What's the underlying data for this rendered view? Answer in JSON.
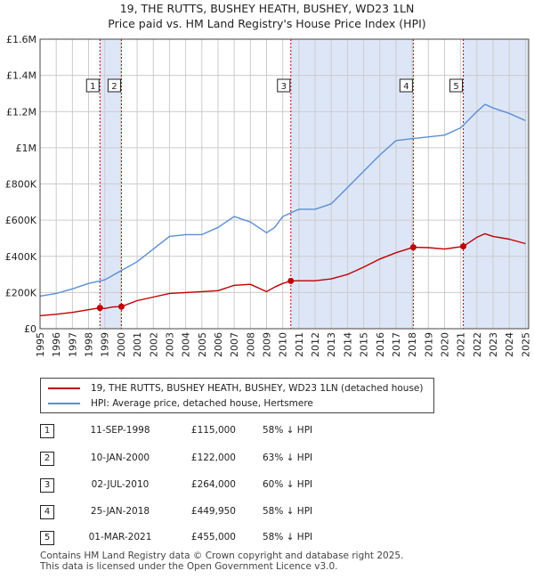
{
  "titles": {
    "line1": "19, THE RUTTS, BUSHEY HEATH, BUSHEY, WD23 1LN",
    "line2": "Price paid vs. HM Land Registry's House Price Index (HPI)"
  },
  "colors": {
    "property": "#c00000",
    "hpi": "#5b8ed6",
    "shade": "#dde6f7",
    "grid": "#cccccc"
  },
  "chart_data": {
    "type": "line",
    "title": "19, THE RUTTS, BUSHEY HEATH, BUSHEY, WD23 1LN",
    "subtitle": "Price paid vs. HM Land Registry's House Price Index (HPI)",
    "xlim": [
      1995,
      2025.2
    ],
    "ylim": [
      0,
      1600000
    ],
    "ytick_values": [
      0,
      200000,
      400000,
      600000,
      800000,
      1000000,
      1200000,
      1400000,
      1600000
    ],
    "ytick_labels": [
      "£0",
      "£200K",
      "£400K",
      "£600K",
      "£800K",
      "£1M",
      "£1.2M",
      "£1.4M",
      "£1.6M"
    ],
    "xtick_labels": [
      "1995",
      "1996",
      "1997",
      "1998",
      "1999",
      "2000",
      "2001",
      "2002",
      "2003",
      "2004",
      "2005",
      "2006",
      "2007",
      "2008",
      "2009",
      "2010",
      "2011",
      "2012",
      "2013",
      "2014",
      "2015",
      "2016",
      "2017",
      "2018",
      "2019",
      "2020",
      "2021",
      "2022",
      "2023",
      "2024",
      "2025"
    ],
    "grid": true,
    "shaded_spans": [
      [
        1998.7,
        2000.03
      ],
      [
        2010.5,
        2018.07
      ],
      [
        2021.16,
        2025.2
      ]
    ],
    "series": [
      {
        "name": "19, THE RUTTS, BUSHEY HEATH, BUSHEY, WD23 1LN (detached house)",
        "x": [
          1995,
          1996,
          1997,
          1998,
          1998.7,
          1999,
          1999.5,
          2000.03,
          2001,
          2002,
          2003,
          2004,
          2005,
          2006,
          2007,
          2008,
          2009,
          2009.5,
          2010,
          2010.5,
          2011,
          2012,
          2013,
          2014,
          2015,
          2016,
          2017,
          2018.07,
          2019,
          2020,
          2021.16,
          2022,
          2022.5,
          2023,
          2024,
          2025
        ],
        "values": [
          72000,
          80000,
          90000,
          105000,
          115000,
          112000,
          120000,
          122000,
          155000,
          175000,
          195000,
          200000,
          205000,
          210000,
          240000,
          245000,
          205000,
          230000,
          250000,
          264000,
          265000,
          265000,
          275000,
          300000,
          340000,
          385000,
          420000,
          449950,
          448000,
          440000,
          455000,
          505000,
          525000,
          510000,
          495000,
          470000
        ]
      },
      {
        "name": "HPI: Average price, detached house, Hertsmere",
        "x": [
          1995,
          1996,
          1997,
          1998,
          1999,
          2000,
          2001,
          2002,
          2003,
          2004,
          2005,
          2006,
          2007,
          2008,
          2009,
          2009.5,
          2010,
          2011,
          2012,
          2013,
          2014,
          2015,
          2016,
          2017,
          2018,
          2019,
          2020,
          2021,
          2022,
          2022.5,
          2023,
          2024,
          2025
        ],
        "values": [
          180000,
          195000,
          220000,
          250000,
          270000,
          320000,
          370000,
          440000,
          510000,
          520000,
          520000,
          560000,
          620000,
          590000,
          530000,
          560000,
          620000,
          660000,
          660000,
          690000,
          780000,
          870000,
          960000,
          1040000,
          1050000,
          1060000,
          1070000,
          1110000,
          1200000,
          1240000,
          1220000,
          1190000,
          1150000
        ]
      }
    ],
    "sale_markers": [
      {
        "n": "1",
        "x": 1998.7,
        "value": 115000
      },
      {
        "n": "2",
        "x": 2000.03,
        "value": 122000
      },
      {
        "n": "3",
        "x": 2010.5,
        "value": 264000
      },
      {
        "n": "4",
        "x": 2018.07,
        "value": 449950
      },
      {
        "n": "5",
        "x": 2021.16,
        "value": 455000
      }
    ]
  },
  "legend": {
    "property_label": "19, THE RUTTS, BUSHEY HEATH, BUSHEY, WD23 1LN (detached house)",
    "hpi_label": "HPI: Average price, detached house, Hertsmere"
  },
  "sales": [
    {
      "n": "1",
      "date": "11-SEP-1998",
      "price": "£115,000",
      "hpi": "58% ↓ HPI"
    },
    {
      "n": "2",
      "date": "10-JAN-2000",
      "price": "£122,000",
      "hpi": "63% ↓ HPI"
    },
    {
      "n": "3",
      "date": "02-JUL-2010",
      "price": "£264,000",
      "hpi": "60% ↓ HPI"
    },
    {
      "n": "4",
      "date": "25-JAN-2018",
      "price": "£449,950",
      "hpi": "58% ↓ HPI"
    },
    {
      "n": "5",
      "date": "01-MAR-2021",
      "price": "£455,000",
      "hpi": "58% ↓ HPI"
    }
  ],
  "footer": {
    "line1": "Contains HM Land Registry data © Crown copyright and database right 2025.",
    "line2": "This data is licensed under the Open Government Licence v3.0."
  }
}
